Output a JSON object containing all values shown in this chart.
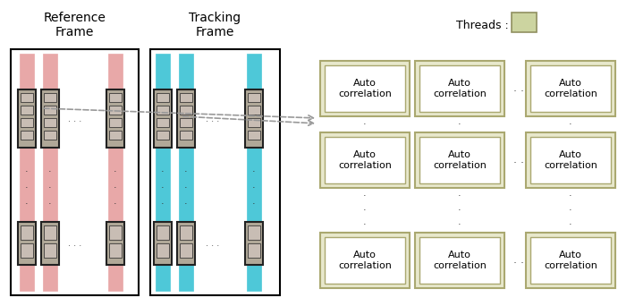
{
  "fig_width": 6.91,
  "fig_height": 3.42,
  "dpi": 100,
  "bg_color": "#ffffff",
  "ref_frame_title": "Reference\nFrame",
  "tracking_frame_title": "Tracking\nFrame",
  "threads_label": "Threads : ",
  "autocorr_label": "Auto\ncorrelation",
  "pink_color": "#e8a8a8",
  "cyan_color": "#4ec8d8",
  "gray_fc": "#b0a898",
  "gray_ec": "#222222",
  "gray_inner": "#c8bdb4",
  "autocorr_bg": "#e8e8cc",
  "autocorr_border": "#aaa870",
  "threads_box_color": "#ccd4a0",
  "threads_box_border": "#909060",
  "dot_color": "#555555"
}
